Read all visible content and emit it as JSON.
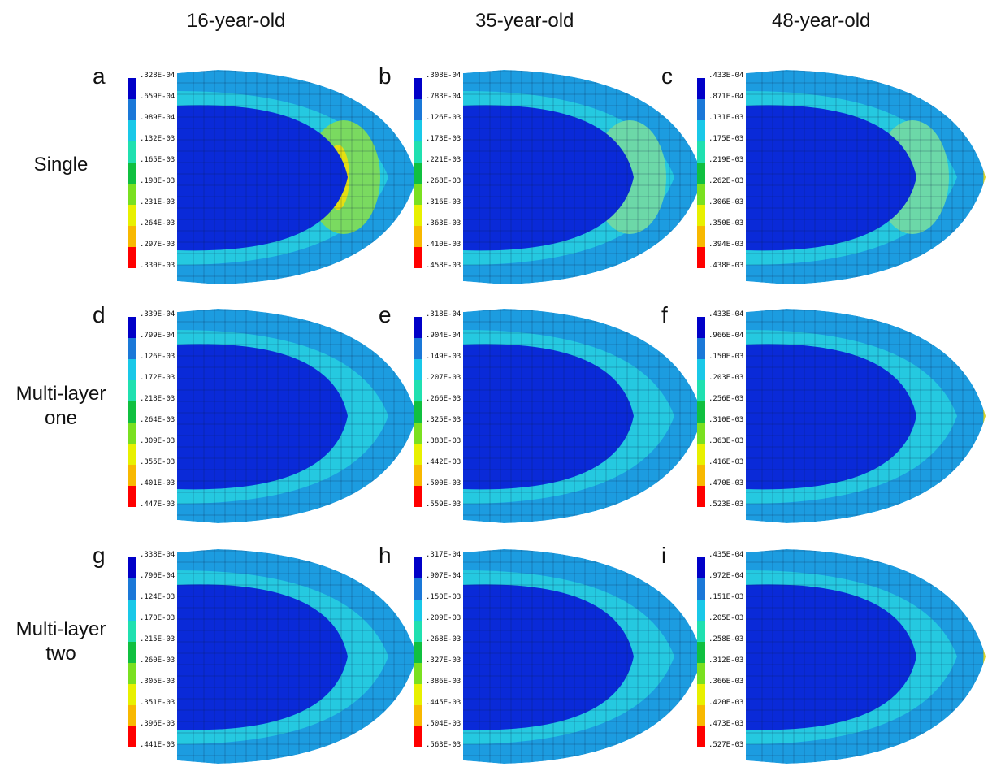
{
  "columns": [
    "16-year-old",
    "35-year-old",
    "48-year-old"
  ],
  "rows": [
    {
      "label": [
        "Single"
      ]
    },
    {
      "label": [
        "Multi-layer",
        "one"
      ]
    },
    {
      "label": [
        "Multi-layer",
        "two"
      ]
    }
  ],
  "scale_colors": [
    "#0000c8",
    "#1a78d8",
    "#19c8e8",
    "#20e0b0",
    "#10c040",
    "#7ae020",
    "#e8f000",
    "#f8b800",
    "#e84000",
    "#ff0000"
  ],
  "mesh_colors": {
    "dark": "#0a2ad8",
    "mid": "#1c9ce0",
    "light": "#28d8e0",
    "warm": "#7ada60",
    "hot": "#ffe000"
  },
  "panels": [
    {
      "letter": "a",
      "labels": [
        ".328E-04",
        ".659E-04",
        ".989E-04",
        ".132E-03",
        ".165E-03",
        ".198E-03",
        ".231E-03",
        ".264E-03",
        ".297E-03",
        ".330E-03"
      ]
    },
    {
      "letter": "b",
      "labels": [
        ".308E-04",
        ".783E-04",
        ".126E-03",
        ".173E-03",
        ".221E-03",
        ".268E-03",
        ".316E-03",
        ".363E-03",
        ".410E-03",
        ".458E-03"
      ]
    },
    {
      "letter": "c",
      "labels": [
        ".433E-04",
        ".871E-04",
        ".131E-03",
        ".175E-03",
        ".219E-03",
        ".262E-03",
        ".306E-03",
        ".350E-03",
        ".394E-03",
        ".438E-03"
      ]
    },
    {
      "letter": "d",
      "labels": [
        ".339E-04",
        ".799E-04",
        ".126E-03",
        ".172E-03",
        ".218E-03",
        ".264E-03",
        ".309E-03",
        ".355E-03",
        ".401E-03",
        ".447E-03"
      ]
    },
    {
      "letter": "e",
      "labels": [
        ".318E-04",
        ".904E-04",
        ".149E-03",
        ".207E-03",
        ".266E-03",
        ".325E-03",
        ".383E-03",
        ".442E-03",
        ".500E-03",
        ".559E-03"
      ]
    },
    {
      "letter": "f",
      "labels": [
        ".433E-04",
        ".966E-04",
        ".150E-03",
        ".203E-03",
        ".256E-03",
        ".310E-03",
        ".363E-03",
        ".416E-03",
        ".470E-03",
        ".523E-03"
      ]
    },
    {
      "letter": "g",
      "labels": [
        ".338E-04",
        ".790E-04",
        ".124E-03",
        ".170E-03",
        ".215E-03",
        ".260E-03",
        ".305E-03",
        ".351E-03",
        ".396E-03",
        ".441E-03"
      ]
    },
    {
      "letter": "h",
      "labels": [
        ".317E-04",
        ".907E-04",
        ".150E-03",
        ".209E-03",
        ".268E-03",
        ".327E-03",
        ".386E-03",
        ".445E-03",
        ".504E-03",
        ".563E-03"
      ]
    },
    {
      "letter": "i",
      "labels": [
        ".435E-04",
        ".972E-04",
        ".151E-03",
        ".205E-03",
        ".258E-03",
        ".312E-03",
        ".366E-03",
        ".420E-03",
        ".473E-03",
        ".527E-03"
      ]
    }
  ]
}
